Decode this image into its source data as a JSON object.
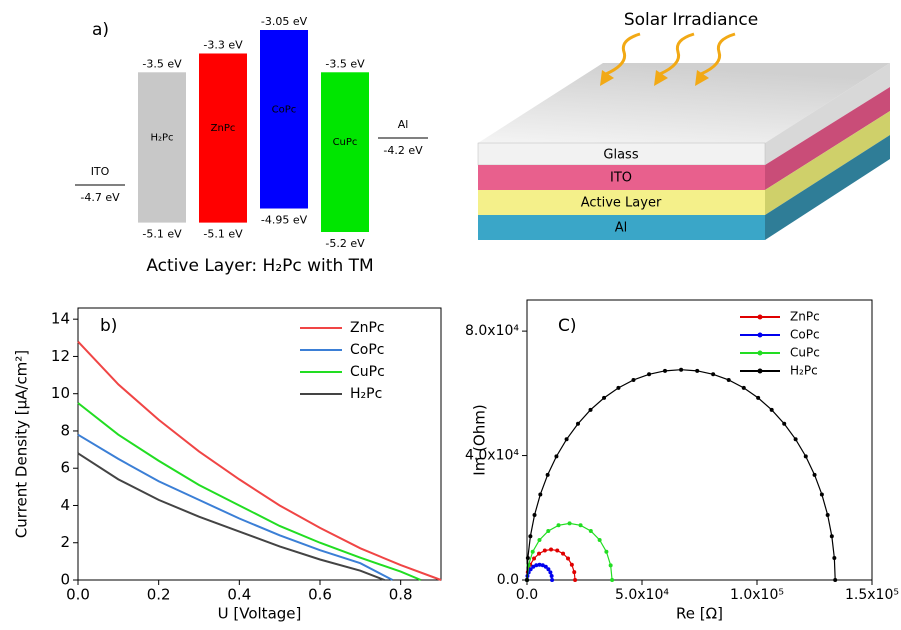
{
  "chart_data": [
    {
      "type": "energy-levels",
      "label": "a)",
      "caption": "Active Layer: H₂Pc with TM",
      "materials": [
        {
          "name": "H₂Pc",
          "lumo": -3.5,
          "lumo_label": "-3.5 eV",
          "homo": -5.1,
          "homo_label": "-5.1 eV",
          "color": "#c8c8c8"
        },
        {
          "name": "ZnPc",
          "lumo": -3.3,
          "lumo_label": "-3.3 eV",
          "homo": -5.1,
          "homo_label": "-5.1 eV",
          "color": "#ff0000"
        },
        {
          "name": "CoPc",
          "lumo": -3.05,
          "lumo_label": "-3.05 eV",
          "homo": -4.95,
          "homo_label": "-4.95 eV",
          "color": "#0000ff"
        },
        {
          "name": "CuPc",
          "lumo": -3.5,
          "lumo_label": "-3.5 eV",
          "homo": -5.2,
          "homo_label": "-5.2 eV",
          "color": "#00e600"
        }
      ],
      "electrodes": [
        {
          "name": "ITO",
          "level": -4.7,
          "level_label": "-4.7 eV"
        },
        {
          "name": "Al",
          "level": -4.2,
          "level_label": "-4.2 eV"
        }
      ]
    },
    {
      "type": "line",
      "label": "b)",
      "xlabel": "U [Voltage]",
      "ylabel": "Current Density [μA/cm²]",
      "xlim": [
        0,
        0.9
      ],
      "ylim": [
        0,
        14.6
      ],
      "xticks": [
        {
          "value": 0,
          "label": "0.0"
        },
        {
          "value": 0.2,
          "label": "0.2"
        },
        {
          "value": 0.4,
          "label": "0.4"
        },
        {
          "value": 0.6,
          "label": "0.6"
        },
        {
          "value": 0.8,
          "label": "0.8"
        }
      ],
      "yticks": [
        0,
        2,
        4,
        6,
        8,
        10,
        12,
        14
      ],
      "series": [
        {
          "name": "ZnPc",
          "color": "#f04545",
          "x": [
            0,
            0.1,
            0.2,
            0.3,
            0.4,
            0.5,
            0.6,
            0.7,
            0.8,
            0.9
          ],
          "values": [
            12.8,
            10.5,
            8.6,
            6.9,
            5.4,
            4.0,
            2.8,
            1.7,
            0.8,
            0
          ]
        },
        {
          "name": "CoPc",
          "color": "#3b7fd6",
          "x": [
            0,
            0.1,
            0.2,
            0.3,
            0.4,
            0.5,
            0.6,
            0.7,
            0.78
          ],
          "values": [
            7.8,
            6.5,
            5.3,
            4.3,
            3.3,
            2.4,
            1.6,
            0.9,
            0
          ]
        },
        {
          "name": "CuPc",
          "color": "#22dd22",
          "x": [
            0,
            0.1,
            0.2,
            0.3,
            0.4,
            0.5,
            0.6,
            0.7,
            0.8,
            0.85
          ],
          "values": [
            9.5,
            7.8,
            6.4,
            5.1,
            4.0,
            2.9,
            2.0,
            1.2,
            0.45,
            0
          ]
        },
        {
          "name": "H₂Pc",
          "color": "#444444",
          "x": [
            0,
            0.1,
            0.2,
            0.3,
            0.4,
            0.5,
            0.6,
            0.7,
            0.76
          ],
          "values": [
            6.8,
            5.4,
            4.3,
            3.4,
            2.6,
            1.8,
            1.1,
            0.5,
            0
          ]
        }
      ]
    },
    {
      "type": "line",
      "markers": true,
      "label": "C)",
      "xlabel": "Re [Ω]",
      "ylabel": "Im (Ohm)",
      "xlim": [
        0,
        150000
      ],
      "ylim": [
        0,
        90000
      ],
      "xticks": [
        {
          "value": 0,
          "label": "0.0"
        },
        {
          "value": 50000,
          "label": "5.0x10⁴"
        },
        {
          "value": 100000,
          "label": "1.0x10⁵"
        },
        {
          "value": 150000,
          "label": "1.5x10⁵"
        }
      ],
      "yticks": [
        {
          "value": 0,
          "label": "0.0"
        },
        {
          "value": 40000,
          "label": "4.0x10⁴"
        },
        {
          "value": 80000,
          "label": "8.0x10⁴"
        }
      ],
      "series": [
        {
          "name": "ZnPc",
          "color": "#e00000",
          "x": [
            0,
            356,
            1400,
            3061,
            5225,
            7745,
            10450,
            13155,
            15675,
            17839,
            19500,
            20544,
            20900
          ],
          "values": [
            0,
            2536,
            4900,
            6929,
            8487,
            9466,
            9800,
            9466,
            8487,
            6929,
            4900,
            2536,
            0
          ]
        },
        {
          "name": "CoPc",
          "color": "#0000ee",
          "x": [
            0,
            186,
            730,
            1596,
            2725,
            4039,
            5450,
            6861,
            8175,
            9304,
            10175,
            10714,
            10900
          ],
          "values": [
            0,
            1268,
            2450,
            3465,
            4243,
            4733,
            4900,
            4733,
            4243,
            3465,
            2450,
            1268,
            0
          ]
        },
        {
          "name": "CuPc",
          "color": "#22dd22",
          "x": [
            0,
            630,
            2479,
            5419,
            9250,
            13712,
            18500,
            23288,
            27750,
            31581,
            34521,
            36370,
            37000
          ],
          "values": [
            0,
            4710,
            9100,
            12869,
            15761,
            17579,
            18200,
            17579,
            15761,
            12869,
            9100,
            4710,
            0
          ]
        },
        {
          "name": "H₂Pc",
          "color": "#000000",
          "x": [
            0,
            367,
            1467,
            3276,
            5795,
            8978,
            12797,
            17212,
            22170,
            27617,
            33500,
            39751,
            46297,
            53071,
            59998,
            67000,
            74002,
            80929,
            87703,
            94249,
            100500,
            106383,
            111830,
            116788,
            121203,
            125022,
            128205,
            130724,
            132533,
            133633,
            134000
          ],
          "values": [
            0,
            7066,
            14054,
            20890,
            27495,
            33800,
            39735,
            45231,
            50234,
            54688,
            58542,
            61753,
            64294,
            66120,
            67228,
            67600,
            67228,
            66120,
            64294,
            61753,
            58542,
            54688,
            50234,
            45231,
            39735,
            33800,
            27495,
            20890,
            14054,
            7066,
            0
          ]
        }
      ]
    }
  ],
  "device": {
    "title": "Solar Irradiance",
    "layers": [
      "Glass",
      "ITO",
      "Active Layer",
      "Al"
    ]
  }
}
